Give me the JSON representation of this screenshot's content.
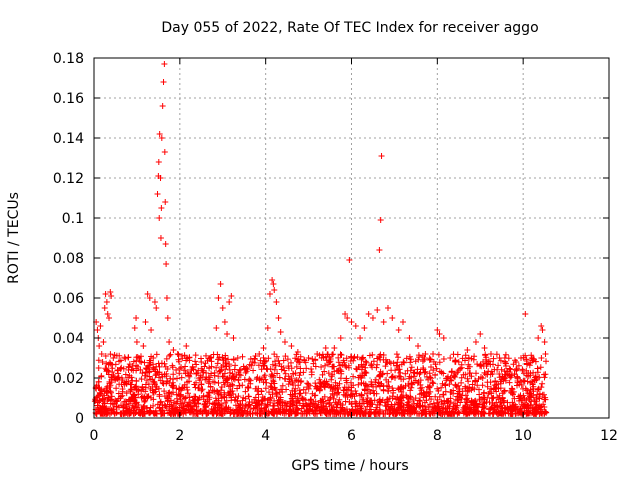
{
  "chart_data": {
    "type": "scatter",
    "title": "Day 055 of 2022, Rate Of TEC Index for receiver aggo",
    "xlabel": "GPS time / hours",
    "ylabel": "ROTI / TECUs",
    "xlim": [
      0,
      12
    ],
    "ylim": [
      0,
      0.18
    ],
    "x_ticks": [
      0,
      2,
      4,
      6,
      8,
      10,
      12
    ],
    "y_ticks": [
      0,
      0.02,
      0.04,
      0.06,
      0.08,
      0.1,
      0.12,
      0.14,
      0.16,
      0.18
    ],
    "x_tick_labels": [
      "0",
      "2",
      "4",
      "6",
      "8",
      "10",
      "12"
    ],
    "y_tick_labels": [
      "0",
      "0.02",
      "0.04",
      "0.06",
      "0.08",
      "0.1",
      "0.12",
      "0.14",
      "0.16",
      "0.18"
    ],
    "grid": true,
    "legend": "none",
    "marker": "plus",
    "series_color": "#ff0000",
    "series": [
      {
        "points": [
          [
            0.05,
            0.048
          ],
          [
            0.08,
            0.044
          ],
          [
            0.1,
            0.04
          ],
          [
            0.12,
            0.036
          ],
          [
            0.15,
            0.046
          ],
          [
            0.18,
            0.032
          ],
          [
            0.2,
            0.028
          ],
          [
            0.22,
            0.038
          ],
          [
            0.25,
            0.055
          ],
          [
            0.27,
            0.062
          ],
          [
            0.3,
            0.058
          ],
          [
            0.32,
            0.052
          ],
          [
            0.35,
            0.05
          ],
          [
            0.38,
            0.063
          ],
          [
            0.4,
            0.061
          ],
          [
            0.45,
            0.03
          ],
          [
            0.55,
            0.024
          ],
          [
            0.65,
            0.02
          ],
          [
            0.8,
            0.018
          ],
          [
            0.9,
            0.026
          ],
          [
            0.95,
            0.045
          ],
          [
            0.98,
            0.05
          ],
          [
            1.0,
            0.038
          ],
          [
            1.05,
            0.03
          ],
          [
            1.1,
            0.028
          ],
          [
            1.15,
            0.036
          ],
          [
            1.2,
            0.048
          ],
          [
            1.25,
            0.062
          ],
          [
            1.3,
            0.06
          ],
          [
            1.33,
            0.044
          ],
          [
            1.38,
            0.03
          ],
          [
            1.42,
            0.058
          ],
          [
            1.45,
            0.055
          ],
          [
            1.48,
            0.112
          ],
          [
            1.5,
            0.121
          ],
          [
            1.51,
            0.128
          ],
          [
            1.52,
            0.1
          ],
          [
            1.53,
            0.142
          ],
          [
            1.55,
            0.12
          ],
          [
            1.56,
            0.09
          ],
          [
            1.57,
            0.105
          ],
          [
            1.58,
            0.14
          ],
          [
            1.6,
            0.156
          ],
          [
            1.62,
            0.168
          ],
          [
            1.64,
            0.177
          ],
          [
            1.65,
            0.133
          ],
          [
            1.66,
            0.108
          ],
          [
            1.67,
            0.087
          ],
          [
            1.68,
            0.077
          ],
          [
            1.7,
            0.06
          ],
          [
            1.72,
            0.05
          ],
          [
            1.75,
            0.038
          ],
          [
            1.85,
            0.034
          ],
          [
            1.95,
            0.032
          ],
          [
            2.05,
            0.031
          ],
          [
            2.15,
            0.036
          ],
          [
            2.3,
            0.025
          ],
          [
            2.5,
            0.028
          ],
          [
            2.7,
            0.03
          ],
          [
            2.85,
            0.045
          ],
          [
            2.9,
            0.06
          ],
          [
            2.95,
            0.067
          ],
          [
            3.0,
            0.055
          ],
          [
            3.05,
            0.048
          ],
          [
            3.1,
            0.042
          ],
          [
            3.15,
            0.058
          ],
          [
            3.2,
            0.061
          ],
          [
            3.25,
            0.04
          ],
          [
            3.35,
            0.03
          ],
          [
            3.55,
            0.025
          ],
          [
            3.7,
            0.028
          ],
          [
            3.85,
            0.032
          ],
          [
            3.95,
            0.035
          ],
          [
            4.05,
            0.045
          ],
          [
            4.1,
            0.062
          ],
          [
            4.15,
            0.069
          ],
          [
            4.18,
            0.067
          ],
          [
            4.2,
            0.064
          ],
          [
            4.25,
            0.058
          ],
          [
            4.3,
            0.05
          ],
          [
            4.35,
            0.043
          ],
          [
            4.45,
            0.038
          ],
          [
            4.6,
            0.036
          ],
          [
            4.75,
            0.033
          ],
          [
            5.0,
            0.03
          ],
          [
            5.2,
            0.032
          ],
          [
            5.4,
            0.035
          ],
          [
            5.6,
            0.035
          ],
          [
            5.75,
            0.04
          ],
          [
            5.85,
            0.052
          ],
          [
            5.9,
            0.05
          ],
          [
            5.95,
            0.079
          ],
          [
            6.0,
            0.048
          ],
          [
            6.1,
            0.046
          ],
          [
            6.2,
            0.04
          ],
          [
            6.3,
            0.045
          ],
          [
            6.4,
            0.052
          ],
          [
            6.5,
            0.05
          ],
          [
            6.6,
            0.054
          ],
          [
            6.65,
            0.084
          ],
          [
            6.68,
            0.099
          ],
          [
            6.7,
            0.131
          ],
          [
            6.75,
            0.048
          ],
          [
            6.85,
            0.055
          ],
          [
            6.95,
            0.05
          ],
          [
            7.1,
            0.044
          ],
          [
            7.2,
            0.048
          ],
          [
            7.35,
            0.04
          ],
          [
            7.55,
            0.036
          ],
          [
            7.7,
            0.03
          ],
          [
            7.9,
            0.032
          ],
          [
            8.0,
            0.044
          ],
          [
            8.05,
            0.042
          ],
          [
            8.15,
            0.04
          ],
          [
            8.3,
            0.03
          ],
          [
            8.5,
            0.028
          ],
          [
            8.7,
            0.034
          ],
          [
            8.9,
            0.038
          ],
          [
            9.0,
            0.042
          ],
          [
            9.1,
            0.035
          ],
          [
            9.25,
            0.032
          ],
          [
            9.45,
            0.03
          ],
          [
            9.6,
            0.026
          ],
          [
            9.8,
            0.022
          ],
          [
            9.95,
            0.03
          ],
          [
            10.05,
            0.052
          ],
          [
            10.2,
            0.03
          ],
          [
            10.35,
            0.04
          ],
          [
            10.42,
            0.046
          ],
          [
            10.45,
            0.044
          ],
          [
            10.5,
            0.038
          ],
          [
            10.52,
            0.032
          ]
        ]
      }
    ]
  }
}
